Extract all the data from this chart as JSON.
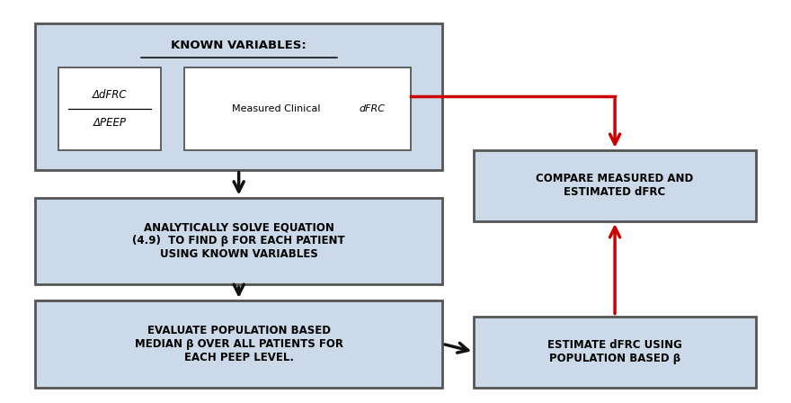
{
  "bg_color": "#ffffff",
  "box_fill": "#ccd9e8",
  "box_edge": "#555555",
  "box_text_color": "#000000",
  "title_text": "KNOWN VARIABLES:",
  "box2_text": "ANALYTICALLY SOLVE EQUATION\n(4.9)  TO FIND β FOR EACH PATIENT\nUSING KNOWN VARIABLES",
  "box3_text": "EVALUATE POPULATION BASED\nMEDIAN β OVER ALL PATIENTS FOR\nEACH PEEP LEVEL.",
  "box4_text": "COMPARE MEASURED AND\nESTIMATED dFRC",
  "box5_text": "ESTIMATE dFRC USING\nPOPULATION BASED β",
  "arrow_black": "#111111",
  "arrow_red": "#cc0000",
  "figsize": [
    8.8,
    4.48
  ],
  "dpi": 100
}
